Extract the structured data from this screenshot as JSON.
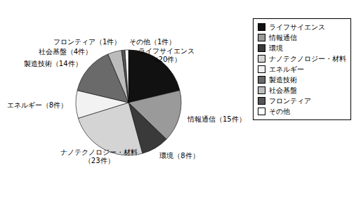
{
  "chart_data": {
    "type": "pie",
    "categories": [
      "ライフサイエンス",
      "情報通信",
      "環境",
      "ナノテクノロジー・材料",
      "エネルギー",
      "製造技術",
      "社会基盤",
      "フロンティア",
      "その他"
    ],
    "values": [
      20,
      15,
      8,
      23,
      8,
      14,
      4,
      1,
      1
    ],
    "value_labels": [
      "ライフサイエンス\n（20件）",
      "情報通信（15件）",
      "環境（8件）",
      "ナノテクノロジー・材料\n（23件）",
      "エネルギー（8件）",
      "製造技術（14件）",
      "社会基盤（4件）",
      "フロンティア（1件）",
      "その他（1件）"
    ],
    "colors": [
      "#111111",
      "#9a9a9a",
      "#3a3a3a",
      "#d4d4d4",
      "#f2f2f2",
      "#6a6a6a",
      "#bcbcbc",
      "#555555",
      "#ffffff"
    ],
    "legend": "right"
  }
}
